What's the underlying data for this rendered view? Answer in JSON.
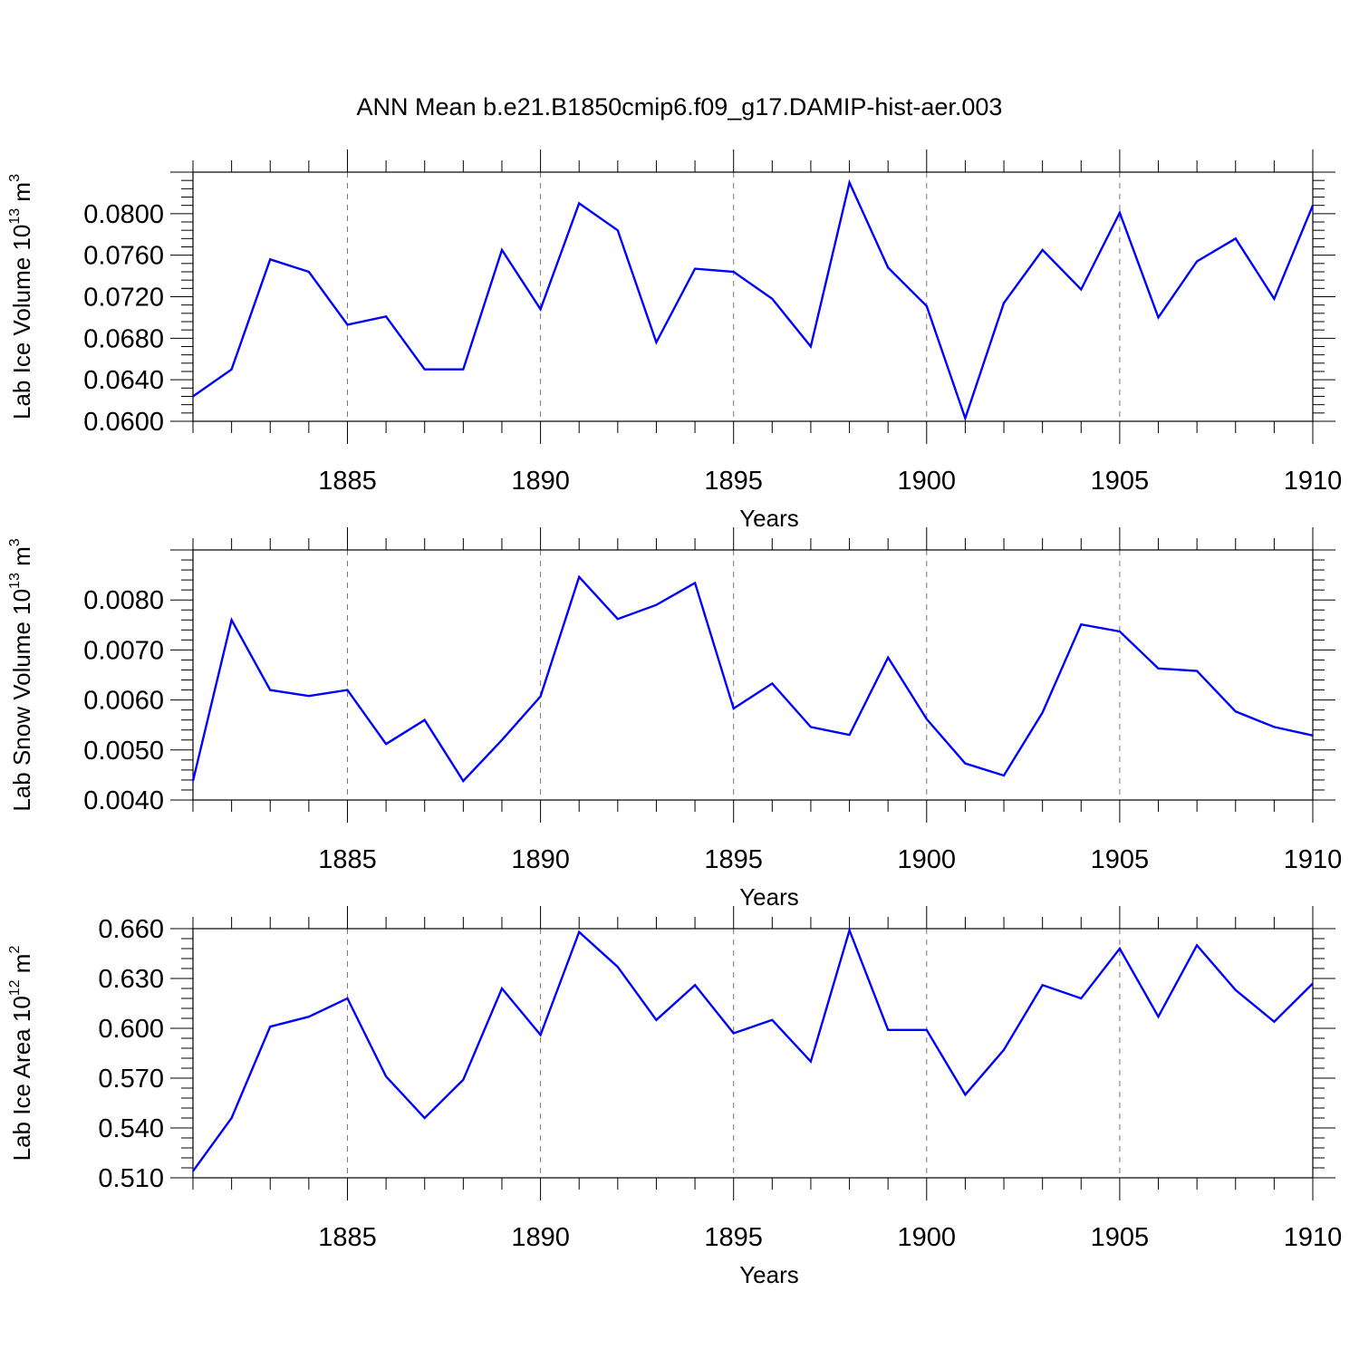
{
  "title": "ANN Mean b.e21.B1850cmip6.f09_g17.DAMIP-hist-aer.003",
  "line_color": "#0000ff",
  "chart_data": [
    {
      "type": "line",
      "ylabel": {
        "text": "Lab Ice Volume 10",
        "exponent": "13",
        "unit": "m",
        "unit_exponent": "3"
      },
      "xlabel": "Years",
      "xlim": [
        1881,
        1910
      ],
      "ylim": [
        0.06,
        0.084
      ],
      "yticks": [
        0.06,
        0.064,
        0.068,
        0.072,
        0.076,
        0.08
      ],
      "ytick_labels": [
        "0.0600",
        "0.0640",
        "0.0680",
        "0.0720",
        "0.0760",
        "0.0800"
      ],
      "xticks": [
        1885,
        1890,
        1895,
        1900,
        1905,
        1910
      ],
      "xtick_labels": [
        "1885",
        "1890",
        "1895",
        "1900",
        "1905",
        "1910"
      ],
      "x": [
        1881,
        1882,
        1883,
        1884,
        1885,
        1886,
        1887,
        1888,
        1889,
        1890,
        1891,
        1892,
        1893,
        1894,
        1895,
        1896,
        1897,
        1898,
        1899,
        1900,
        1901,
        1902,
        1903,
        1904,
        1905,
        1906,
        1907,
        1908,
        1909,
        1910
      ],
      "values": [
        0.0624,
        0.065,
        0.0756,
        0.0744,
        0.0693,
        0.0701,
        0.065,
        0.065,
        0.0765,
        0.0708,
        0.081,
        0.0784,
        0.0676,
        0.0747,
        0.0744,
        0.0718,
        0.0672,
        0.083,
        0.0748,
        0.0711,
        0.0603,
        0.0714,
        0.0765,
        0.0727,
        0.0801,
        0.07,
        0.0754,
        0.0776,
        0.0718,
        0.0808
      ]
    },
    {
      "type": "line",
      "ylabel": {
        "text": "Lab Snow Volume 10",
        "exponent": "13",
        "unit": "m",
        "unit_exponent": "3"
      },
      "xlabel": "Years",
      "xlim": [
        1881,
        1910
      ],
      "ylim": [
        0.004,
        0.009
      ],
      "yticks": [
        0.004,
        0.005,
        0.006,
        0.007,
        0.008
      ],
      "ytick_labels": [
        "0.0040",
        "0.0050",
        "0.0060",
        "0.0070",
        "0.0080"
      ],
      "xticks": [
        1885,
        1890,
        1895,
        1900,
        1905,
        1910
      ],
      "xtick_labels": [
        "1885",
        "1890",
        "1895",
        "1900",
        "1905",
        "1910"
      ],
      "x": [
        1881,
        1882,
        1883,
        1884,
        1885,
        1886,
        1887,
        1888,
        1889,
        1890,
        1891,
        1892,
        1893,
        1894,
        1895,
        1896,
        1897,
        1898,
        1899,
        1900,
        1901,
        1902,
        1903,
        1904,
        1905,
        1906,
        1907,
        1908,
        1909,
        1910
      ],
      "values": [
        0.00438,
        0.0076,
        0.0062,
        0.00608,
        0.0062,
        0.00512,
        0.0056,
        0.00438,
        0.0052,
        0.00607,
        0.00846,
        0.00762,
        0.0079,
        0.00834,
        0.00583,
        0.00633,
        0.00546,
        0.0053,
        0.00685,
        0.00562,
        0.00473,
        0.00449,
        0.00575,
        0.00751,
        0.00737,
        0.00663,
        0.00658,
        0.00577,
        0.00546,
        0.00529
      ]
    },
    {
      "type": "line",
      "ylabel": {
        "text": "Lab Ice Area 10",
        "exponent": "12",
        "unit": "m",
        "unit_exponent": "2"
      },
      "xlabel": "Years",
      "xlim": [
        1881,
        1910
      ],
      "ylim": [
        0.51,
        0.66
      ],
      "yticks": [
        0.51,
        0.54,
        0.57,
        0.6,
        0.63,
        0.66
      ],
      "ytick_labels": [
        "0.510",
        "0.540",
        "0.570",
        "0.600",
        "0.630",
        "0.660"
      ],
      "xticks": [
        1885,
        1890,
        1895,
        1900,
        1905,
        1910
      ],
      "xtick_labels": [
        "1885",
        "1890",
        "1895",
        "1900",
        "1905",
        "1910"
      ],
      "x": [
        1881,
        1882,
        1883,
        1884,
        1885,
        1886,
        1887,
        1888,
        1889,
        1890,
        1891,
        1892,
        1893,
        1894,
        1895,
        1896,
        1897,
        1898,
        1899,
        1900,
        1901,
        1902,
        1903,
        1904,
        1905,
        1906,
        1907,
        1908,
        1909,
        1910
      ],
      "values": [
        0.514,
        0.546,
        0.601,
        0.607,
        0.618,
        0.571,
        0.546,
        0.569,
        0.624,
        0.596,
        0.658,
        0.637,
        0.605,
        0.626,
        0.597,
        0.605,
        0.58,
        0.659,
        0.599,
        0.599,
        0.56,
        0.587,
        0.626,
        0.618,
        0.648,
        0.607,
        0.65,
        0.623,
        0.604,
        0.627
      ]
    }
  ]
}
